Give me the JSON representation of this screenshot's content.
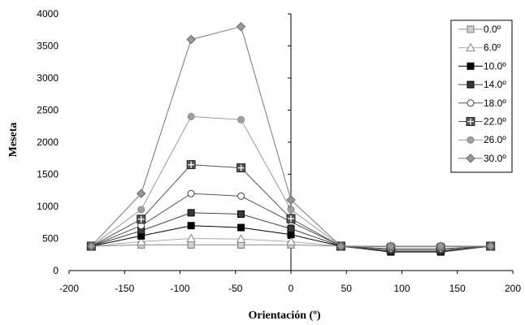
{
  "chart_data": {
    "type": "line",
    "title": "",
    "xlabel": "Orientación (º)",
    "ylabel": "Meseta",
    "xlim": [
      -200,
      200
    ],
    "ylim": [
      0,
      4000
    ],
    "xticks": [
      -200,
      -150,
      -100,
      -50,
      0,
      50,
      100,
      150,
      200
    ],
    "yticks": [
      0,
      500,
      1000,
      1500,
      2000,
      2500,
      3000,
      3500,
      4000
    ],
    "grid": false,
    "legend_position": "right",
    "x": [
      -180,
      -135,
      -90,
      -45,
      0,
      45,
      90,
      135,
      180
    ],
    "series": [
      {
        "name": "0.0º",
        "marker": "square-open",
        "color": "#888888",
        "values": [
          380,
          400,
          400,
          400,
          400,
          380,
          380,
          380,
          380
        ]
      },
      {
        "name": "6.0º",
        "marker": "triangle-open",
        "color": "#aaaaaa",
        "values": [
          380,
          450,
          500,
          490,
          450,
          380,
          380,
          380,
          380
        ]
      },
      {
        "name": "10.0º",
        "marker": "square-filled",
        "color": "#000000",
        "values": [
          380,
          540,
          700,
          670,
          560,
          380,
          290,
          290,
          380
        ]
      },
      {
        "name": "14.0º",
        "marker": "square-dark",
        "color": "#444444",
        "values": [
          380,
          620,
          900,
          880,
          650,
          380,
          300,
          300,
          380
        ]
      },
      {
        "name": "18.0º",
        "marker": "circle-open",
        "color": "#555555",
        "values": [
          380,
          700,
          1200,
          1160,
          760,
          380,
          320,
          320,
          380
        ]
      },
      {
        "name": "22.0º",
        "marker": "square-plus",
        "color": "#555555",
        "values": [
          380,
          800,
          1650,
          1600,
          810,
          380,
          340,
          340,
          380
        ]
      },
      {
        "name": "26.0º",
        "marker": "circle-filled",
        "color": "#999999",
        "values": [
          380,
          950,
          2400,
          2350,
          950,
          380,
          370,
          370,
          380
        ]
      },
      {
        "name": "30.0º",
        "marker": "diamond",
        "color": "#777777",
        "values": [
          380,
          1200,
          3600,
          3800,
          1100,
          380,
          380,
          380,
          380
        ]
      }
    ]
  }
}
